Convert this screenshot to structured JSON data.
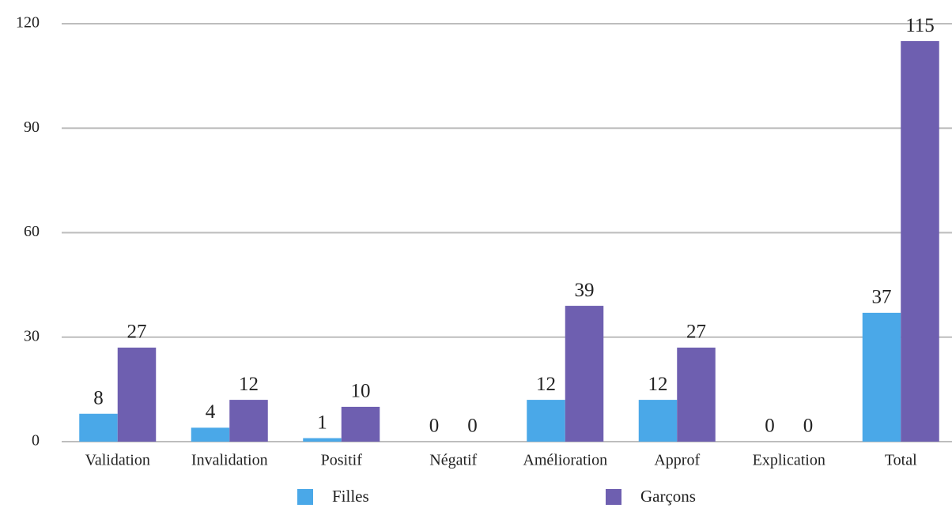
{
  "chart_data": {
    "type": "bar",
    "categories": [
      "Validation",
      "Invalidation",
      "Positif",
      "Négatif",
      "Amélioration",
      "Approf",
      "Explication",
      "Total"
    ],
    "series": [
      {
        "name": "Filles",
        "color": "#4aa8e8",
        "values": [
          8,
          4,
          1,
          0,
          12,
          12,
          0,
          37
        ]
      },
      {
        "name": "Garçons",
        "color": "#6e5fb0",
        "values": [
          27,
          12,
          10,
          0,
          39,
          27,
          0,
          115
        ]
      }
    ],
    "ylim": [
      0,
      120
    ],
    "yticks": [
      0,
      30,
      60,
      90,
      120
    ],
    "grid": true,
    "legend": "bottom"
  }
}
